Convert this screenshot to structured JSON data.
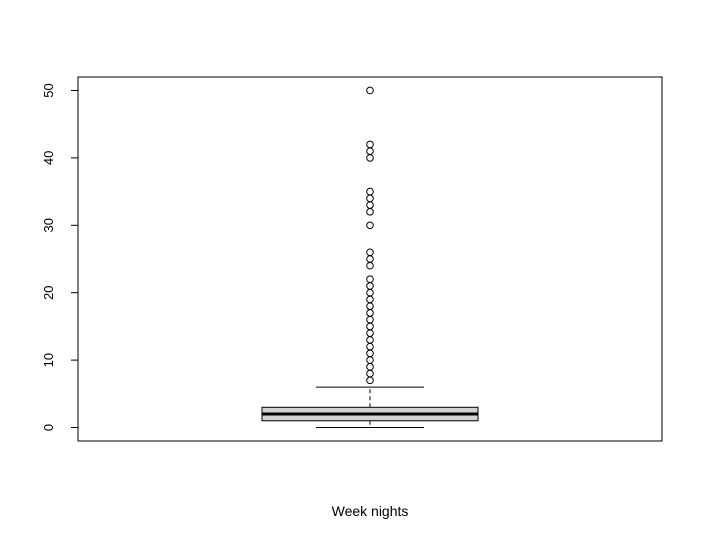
{
  "chart_data": {
    "type": "box",
    "xlabel": "Week nights",
    "ylabel": "",
    "title": "",
    "ylim": [
      -2,
      52
    ],
    "yticks": [
      0,
      10,
      20,
      30,
      40,
      50
    ],
    "grid": false,
    "box": {
      "whisker_low": 0,
      "q1": 1,
      "median": 2,
      "q3": 3,
      "whisker_high": 6,
      "fill_color": "#d3d3d3"
    },
    "outliers": [
      7,
      8,
      9,
      10,
      11,
      12,
      13,
      14,
      15,
      16,
      17,
      18,
      19,
      20,
      21,
      22,
      24,
      25,
      26,
      30,
      32,
      33,
      34,
      35,
      40,
      41,
      42,
      50
    ]
  }
}
